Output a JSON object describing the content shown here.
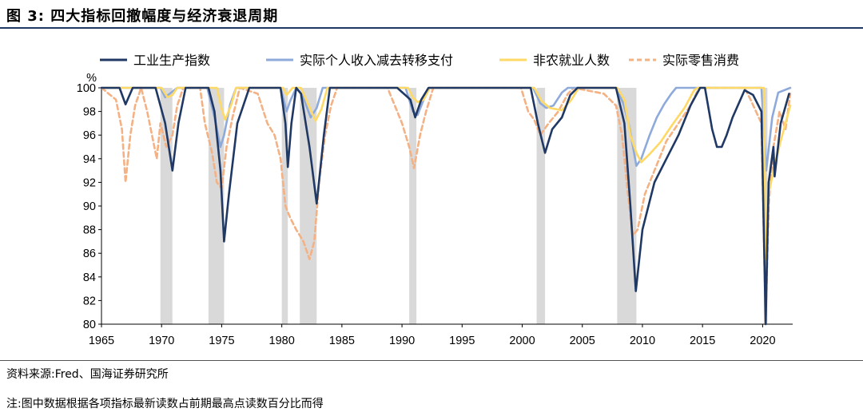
{
  "figure": {
    "title": "图 3:  四大指标回撤幅度与经济衰退周期",
    "source": "资料来源:Fred、国海证券研究所",
    "note": "注:图中数据根据各项指标最新读数占前期最高点读数百分比而得"
  },
  "chart_data": {
    "type": "line",
    "y_unit": "%",
    "xlim": [
      1965,
      2022.5
    ],
    "ylim": [
      80,
      100
    ],
    "x_ticks": [
      "1965",
      "1970",
      "1975",
      "1980",
      "1985",
      "1990",
      "1995",
      "2000",
      "2005",
      "2010",
      "2015",
      "2020"
    ],
    "y_ticks": [
      "80",
      "82",
      "84",
      "86",
      "88",
      "90",
      "92",
      "94",
      "96",
      "98",
      "100"
    ],
    "grid": false,
    "legend_position": "top",
    "recessions": [
      [
        1969.9,
        1970.9
      ],
      [
        1973.9,
        1975.2
      ],
      [
        1980.0,
        1980.5
      ],
      [
        1981.5,
        1982.9
      ],
      [
        1990.6,
        1991.2
      ],
      [
        2001.2,
        2001.9
      ],
      [
        2007.9,
        2009.5
      ],
      [
        2020.1,
        2020.4
      ]
    ],
    "series": [
      {
        "name": "工业生产指数",
        "color": "#1f3864",
        "style": "solid",
        "points": [
          [
            1965,
            100
          ],
          [
            1966.5,
            100
          ],
          [
            1967.0,
            98.6
          ],
          [
            1967.6,
            100
          ],
          [
            1969.5,
            100
          ],
          [
            1970.3,
            97
          ],
          [
            1970.9,
            93
          ],
          [
            1971.4,
            97
          ],
          [
            1972.0,
            100
          ],
          [
            1973.9,
            100
          ],
          [
            1974.4,
            98
          ],
          [
            1974.9,
            93
          ],
          [
            1975.2,
            87
          ],
          [
            1975.6,
            91
          ],
          [
            1976.3,
            97
          ],
          [
            1977.3,
            100
          ],
          [
            1979.9,
            100
          ],
          [
            1980.3,
            97
          ],
          [
            1980.5,
            93.3
          ],
          [
            1980.8,
            97
          ],
          [
            1981.2,
            100
          ],
          [
            1981.6,
            99.5
          ],
          [
            1982.3,
            95
          ],
          [
            1982.9,
            90.2
          ],
          [
            1983.5,
            96
          ],
          [
            1984.0,
            100
          ],
          [
            1989.6,
            100
          ],
          [
            1990.7,
            99
          ],
          [
            1991.1,
            97.5
          ],
          [
            1991.6,
            99
          ],
          [
            1992.2,
            100
          ],
          [
            2000.7,
            100
          ],
          [
            2001.3,
            97
          ],
          [
            2001.9,
            94.5
          ],
          [
            2002.5,
            96.5
          ],
          [
            2003.3,
            97.5
          ],
          [
            2004.0,
            99.4
          ],
          [
            2004.6,
            100
          ],
          [
            2007.8,
            100
          ],
          [
            2008.5,
            97
          ],
          [
            2009.0,
            90
          ],
          [
            2009.45,
            82.8
          ],
          [
            2010.0,
            88
          ],
          [
            2011.0,
            92
          ],
          [
            2012.0,
            94
          ],
          [
            2013.0,
            96
          ],
          [
            2014.0,
            98.5
          ],
          [
            2014.8,
            100
          ],
          [
            2015.2,
            100
          ],
          [
            2015.8,
            96.5
          ],
          [
            2016.2,
            95
          ],
          [
            2016.6,
            95
          ],
          [
            2017.0,
            96
          ],
          [
            2017.5,
            97.5
          ],
          [
            2018.5,
            99.8
          ],
          [
            2019.2,
            99.4
          ],
          [
            2019.9,
            98
          ],
          [
            2020.25,
            80
          ],
          [
            2020.5,
            92
          ],
          [
            2020.9,
            95
          ],
          [
            2021.0,
            92.5
          ],
          [
            2021.5,
            97
          ],
          [
            2022.2,
            99.5
          ]
        ]
      },
      {
        "name": "实际个人收入减去转移支付",
        "color": "#8eaadb",
        "style": "solid",
        "points": [
          [
            1965,
            100
          ],
          [
            1969.9,
            100
          ],
          [
            1970.3,
            99.2
          ],
          [
            1970.8,
            99.6
          ],
          [
            1971.3,
            100
          ],
          [
            1973.8,
            100
          ],
          [
            1974.4,
            97.5
          ],
          [
            1974.9,
            95
          ],
          [
            1975.2,
            96
          ],
          [
            1975.7,
            98.6
          ],
          [
            1976.2,
            100
          ],
          [
            1979.9,
            100
          ],
          [
            1980.4,
            98
          ],
          [
            1980.7,
            98.9
          ],
          [
            1981.2,
            100
          ],
          [
            1981.7,
            99.4
          ],
          [
            1982.4,
            97.5
          ],
          [
            1982.9,
            98.3
          ],
          [
            1983.4,
            100
          ],
          [
            1990.3,
            100
          ],
          [
            1990.9,
            98
          ],
          [
            1991.3,
            97.7
          ],
          [
            1991.8,
            99
          ],
          [
            1992.3,
            100
          ],
          [
            2000.9,
            100
          ],
          [
            2001.5,
            98.7
          ],
          [
            2002.0,
            98.3
          ],
          [
            2002.6,
            98.5
          ],
          [
            2003.3,
            99.6
          ],
          [
            2003.8,
            100
          ],
          [
            2007.8,
            100
          ],
          [
            2008.4,
            98.7
          ],
          [
            2008.9,
            96.8
          ],
          [
            2009.5,
            93.4
          ],
          [
            2009.9,
            94
          ],
          [
            2010.6,
            96
          ],
          [
            2011.2,
            97.5
          ],
          [
            2011.8,
            98.6
          ],
          [
            2012.4,
            99.5
          ],
          [
            2012.8,
            100
          ],
          [
            2019.9,
            100
          ],
          [
            2020.3,
            93
          ],
          [
            2020.8,
            97.5
          ],
          [
            2021.3,
            99.6
          ],
          [
            2022.3,
            100
          ]
        ]
      },
      {
        "name": "非农就业人数",
        "color": "#ffd966",
        "style": "solid",
        "points": [
          [
            1965,
            100
          ],
          [
            1970.0,
            100
          ],
          [
            1970.5,
            99.2
          ],
          [
            1970.9,
            99.4
          ],
          [
            1971.3,
            100
          ],
          [
            1974.6,
            100
          ],
          [
            1975.0,
            98.2
          ],
          [
            1975.3,
            97.3
          ],
          [
            1975.8,
            98.6
          ],
          [
            1976.2,
            100
          ],
          [
            1980.1,
            100
          ],
          [
            1980.4,
            99.4
          ],
          [
            1980.9,
            100
          ],
          [
            1981.6,
            100
          ],
          [
            1982.2,
            98.6
          ],
          [
            1982.8,
            97.2
          ],
          [
            1983.3,
            98.2
          ],
          [
            1983.8,
            100
          ],
          [
            1990.5,
            100
          ],
          [
            1990.9,
            99.2
          ],
          [
            1991.3,
            98.8
          ],
          [
            1991.8,
            99
          ],
          [
            1992.3,
            100
          ],
          [
            2001.0,
            100
          ],
          [
            2001.6,
            98.9
          ],
          [
            2002.3,
            98.3
          ],
          [
            2003.3,
            98.1
          ],
          [
            2004.1,
            99
          ],
          [
            2004.7,
            100
          ],
          [
            2007.9,
            100
          ],
          [
            2008.5,
            99
          ],
          [
            2009.0,
            96
          ],
          [
            2009.5,
            94.5
          ],
          [
            2009.9,
            93.7
          ],
          [
            2010.6,
            94.4
          ],
          [
            2011.5,
            95.4
          ],
          [
            2012.5,
            96.9
          ],
          [
            2013.5,
            98.3
          ],
          [
            2014.3,
            99.8
          ],
          [
            2014.6,
            100
          ],
          [
            2020.1,
            100
          ],
          [
            2020.25,
            85.5
          ],
          [
            2020.5,
            91
          ],
          [
            2020.9,
            93
          ],
          [
            2021.5,
            95.5
          ],
          [
            2022.3,
            98.5
          ]
        ]
      },
      {
        "name": "实际零售消费",
        "color": "#f4b183",
        "style": "dashed",
        "points": [
          [
            1965,
            100
          ],
          [
            1966.2,
            99
          ],
          [
            1966.7,
            96.5
          ],
          [
            1967.0,
            92
          ],
          [
            1967.4,
            96
          ],
          [
            1967.8,
            98.5
          ],
          [
            1968.3,
            100
          ],
          [
            1968.8,
            98
          ],
          [
            1969.2,
            96
          ],
          [
            1969.6,
            94
          ],
          [
            1969.9,
            97
          ],
          [
            1970.4,
            95
          ],
          [
            1970.9,
            96
          ],
          [
            1971.3,
            98.5
          ],
          [
            1971.8,
            100
          ],
          [
            1973.2,
            100
          ],
          [
            1973.6,
            97
          ],
          [
            1974.2,
            94.5
          ],
          [
            1974.6,
            92
          ],
          [
            1975.0,
            91.5
          ],
          [
            1975.4,
            95
          ],
          [
            1975.9,
            97.5
          ],
          [
            1976.5,
            100
          ],
          [
            1978.0,
            99.5
          ],
          [
            1978.8,
            97
          ],
          [
            1979.4,
            96
          ],
          [
            1979.9,
            94
          ],
          [
            1980.3,
            90
          ],
          [
            1980.7,
            89
          ],
          [
            1981.2,
            88
          ],
          [
            1981.8,
            87
          ],
          [
            1982.3,
            85.5
          ],
          [
            1982.7,
            87
          ],
          [
            1983.1,
            92
          ],
          [
            1983.6,
            96
          ],
          [
            1984.1,
            98.5
          ],
          [
            1984.6,
            100
          ],
          [
            1988.8,
            100
          ],
          [
            1989.4,
            98.5
          ],
          [
            1990.0,
            97
          ],
          [
            1990.6,
            95
          ],
          [
            1991.0,
            93.2
          ],
          [
            1991.5,
            96
          ],
          [
            1992.0,
            98
          ],
          [
            1992.6,
            100
          ],
          [
            1999.9,
            100
          ],
          [
            2000.5,
            98
          ],
          [
            2001.0,
            97.3
          ],
          [
            2001.5,
            96
          ],
          [
            2002.2,
            97
          ],
          [
            2003.0,
            98
          ],
          [
            2003.8,
            99.5
          ],
          [
            2004.3,
            100
          ],
          [
            2006.8,
            99.5
          ],
          [
            2007.8,
            98.5
          ],
          [
            2008.3,
            96
          ],
          [
            2008.8,
            91
          ],
          [
            2009.2,
            87.5
          ],
          [
            2009.6,
            88
          ],
          [
            2010.2,
            91
          ],
          [
            2011.0,
            93
          ],
          [
            2012.0,
            95.5
          ],
          [
            2013.0,
            97
          ],
          [
            2014.0,
            98.5
          ],
          [
            2014.7,
            100
          ],
          [
            2018.5,
            100
          ],
          [
            2019.0,
            99
          ],
          [
            2019.9,
            97
          ],
          [
            2020.25,
            80
          ],
          [
            2020.5,
            90
          ],
          [
            2020.9,
            95
          ],
          [
            2021.4,
            98
          ],
          [
            2021.9,
            96.5
          ],
          [
            2022.3,
            99.5
          ]
        ]
      }
    ]
  }
}
